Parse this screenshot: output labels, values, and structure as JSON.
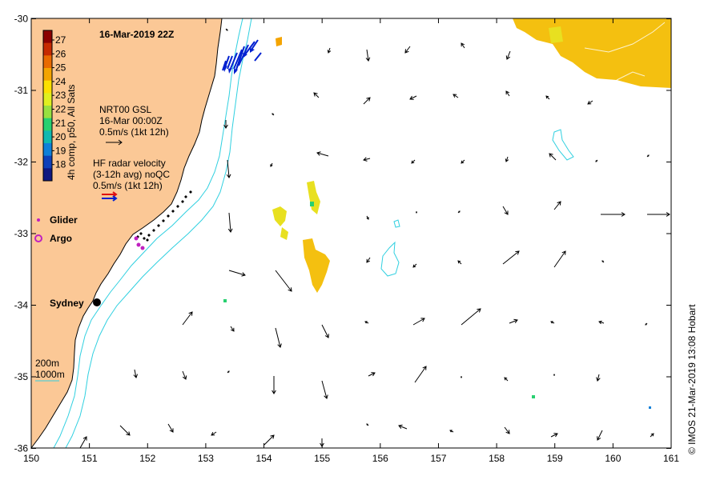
{
  "title": "16-Mar-2019 22Z",
  "colorbar": {
    "label": "4h comp, p50, All Sats",
    "ticks": [
      "27",
      "26",
      "25",
      "24",
      "23",
      "22",
      "21",
      "20",
      "19",
      "18"
    ],
    "colors": [
      "#8b0000",
      "#c62a00",
      "#e96a00",
      "#f4a400",
      "#fce000",
      "#e0ef20",
      "#98e040",
      "#28d070",
      "#10b8b0",
      "#1080d8",
      "#1040b8",
      "#101880"
    ]
  },
  "legend": {
    "gsl": {
      "line1": "NRT00 GSL",
      "line2": "16-Mar 00:00Z",
      "line3": "0.5m/s (1kt 12h)"
    },
    "hf": {
      "line1": "HF radar velocity",
      "line2": "(3-12h avg) noQC",
      "line3": "0.5m/s (1kt 12h)"
    },
    "glider": "Glider",
    "argo": "Argo",
    "sydney": "Sydney",
    "isobath": {
      "a": "200m",
      "b": "1000m"
    }
  },
  "credit": "© IMOS 21-Mar-2019 13:08 Hobart",
  "axes": {
    "lon_ticks": [
      "150",
      "151",
      "152",
      "153",
      "154",
      "155",
      "156",
      "157",
      "158",
      "159",
      "160",
      "161"
    ],
    "lat_ticks": [
      "-30",
      "-31",
      "-32",
      "-33",
      "-34",
      "-35",
      "-36"
    ]
  },
  "colors": {
    "land": "#fbc896",
    "isobath": "#30d0e0",
    "hf": "#0020d0",
    "hf_red": "#e01010",
    "glider": "#c020c0",
    "sst_warm": "#f4c010",
    "sst_yellow": "#e8e020"
  }
}
